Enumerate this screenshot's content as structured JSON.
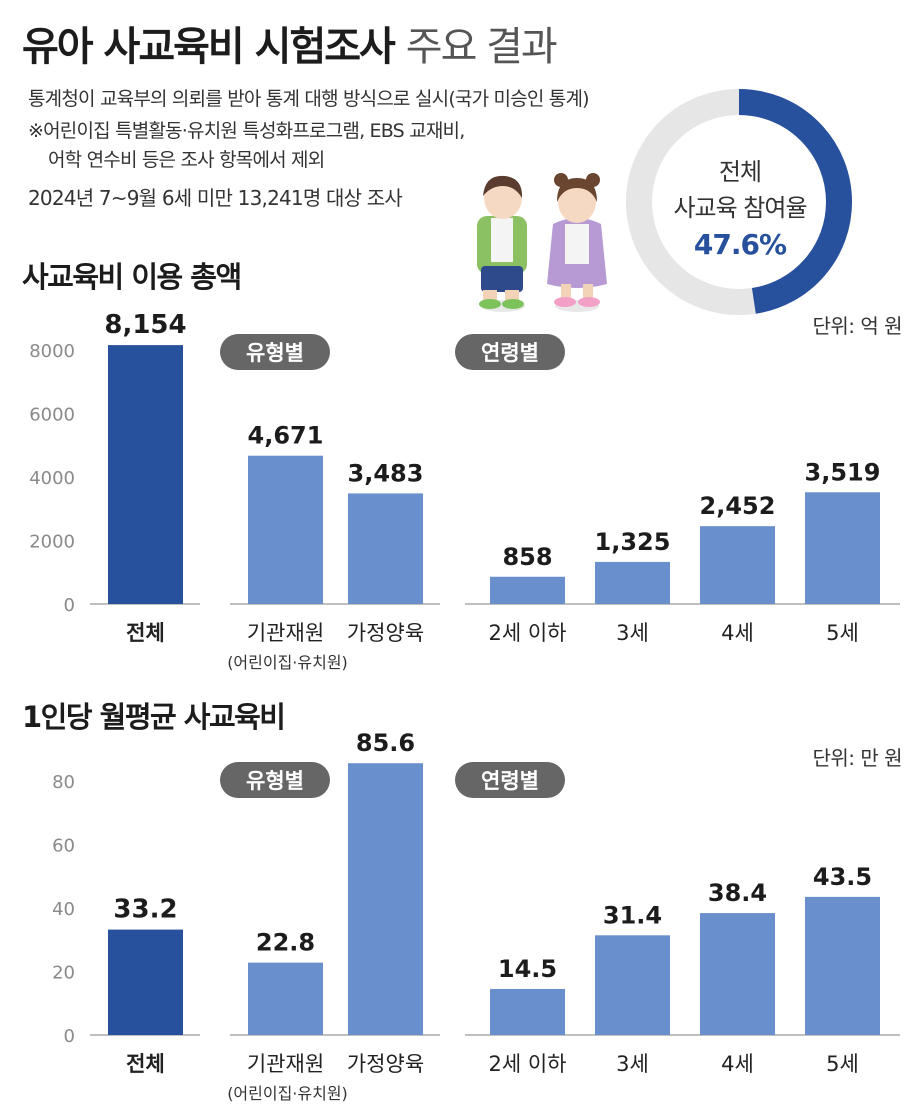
{
  "header": {
    "title_bold": "유아 사교육비 시험조사",
    "title_light": "주요 결과",
    "notes": [
      "통계청이 교육부의 의뢰를 받아 통계 대행 방식으로 실시(국가 미승인 통계)",
      "※어린이집 특별활동·유치원 특성화프로그램, EBS 교재비,",
      "어학 연수비 등은 조사 항목에서 제외",
      "2024년 7~9월 6세 미만 13,241명 대상 조사"
    ]
  },
  "participation": {
    "label_line1": "전체",
    "label_line2": "사교육 참여율",
    "value_text": "47.6%",
    "value": 47.6
  },
  "chart_data": [
    {
      "type": "bar",
      "title": "사교육비 이용 총액",
      "unit": "단위: 억 원",
      "ylim": [
        0,
        8000
      ],
      "yticks": [
        "0",
        "2000",
        "4000",
        "6000",
        "8000"
      ],
      "grid": false,
      "groups": [
        {
          "tag": "",
          "categories": [
            "전체"
          ],
          "values": [
            8154
          ],
          "labels": [
            "8,154"
          ]
        },
        {
          "tag": "유형별",
          "categories": [
            "기관재원",
            "가정양육"
          ],
          "sublabel": "(어린이집·유치원)",
          "values": [
            4671,
            3483
          ],
          "labels": [
            "4,671",
            "3,483"
          ]
        },
        {
          "tag": "연령별",
          "categories": [
            "2세 이하",
            "3세",
            "4세",
            "5세"
          ],
          "values": [
            858,
            1325,
            2452,
            3519
          ],
          "labels": [
            "858",
            "1,325",
            "2,452",
            "3,519"
          ]
        }
      ]
    },
    {
      "type": "bar",
      "title": "1인당 월평균 사교육비",
      "unit": "단위: 만 원",
      "ylim": [
        0,
        80
      ],
      "yticks": [
        "0",
        "20",
        "40",
        "60",
        "80"
      ],
      "grid": false,
      "groups": [
        {
          "tag": "",
          "categories": [
            "전체"
          ],
          "values": [
            33.2
          ],
          "labels": [
            "33.2"
          ]
        },
        {
          "tag": "유형별",
          "categories": [
            "기관재원",
            "가정양육"
          ],
          "sublabel": "(어린이집·유치원)",
          "values": [
            22.8,
            85.6
          ],
          "labels": [
            "22.8",
            "85.6"
          ]
        },
        {
          "tag": "연령별",
          "categories": [
            "2세 이하",
            "3세",
            "4세",
            "5세"
          ],
          "values": [
            14.5,
            31.4,
            38.4,
            43.5
          ],
          "labels": [
            "14.5",
            "31.4",
            "38.4",
            "43.5"
          ]
        }
      ]
    }
  ],
  "colors": {
    "total_bar": "#27519c",
    "bar": "#6a8fcd",
    "axis": "#aaaaaa",
    "tick_text": "#8a8a8a",
    "tag_bg": "#666666",
    "donut_track": "#e6e6e6",
    "donut_fill": "#27519c"
  }
}
